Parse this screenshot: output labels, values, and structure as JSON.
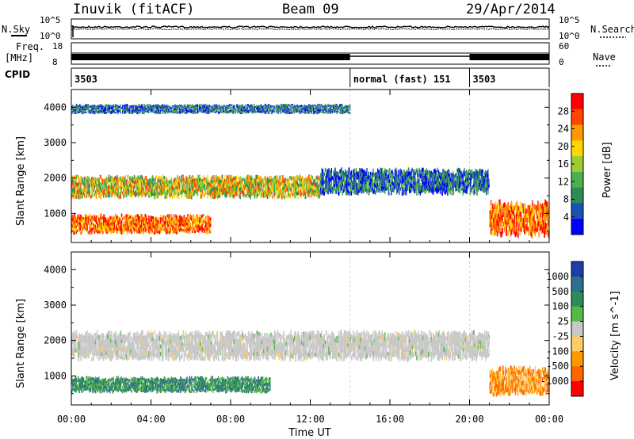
{
  "header": {
    "station": "Inuvik (fitACF)",
    "beam": "Beam 09",
    "date": "29/Apr/2014"
  },
  "top_panels": {
    "nsky_label": "N.Sky",
    "nsearch_label": "N.Search",
    "noise_ticks": [
      "10^5",
      "10^0"
    ],
    "freq_label": "Freq.",
    "freq_unit": "[MHz]",
    "freq_ticks": [
      "18",
      "8"
    ],
    "nave_label": "Nave",
    "nave_ticks": [
      "60",
      "0"
    ],
    "cpid_label": "CPID",
    "cpid_segments": [
      {
        "label": "3503",
        "start_h": 0,
        "end_h": 14.0
      },
      {
        "label": "normal (fast) 151",
        "start_h": 14.0,
        "end_h": 20.0
      },
      {
        "label": "3503",
        "start_h": 20.0,
        "end_h": 24
      }
    ]
  },
  "chart_data": [
    {
      "type": "heatmap",
      "quantity": "Power",
      "ylabel": "Slant Range [km]",
      "xlabel": "",
      "xlim": [
        0,
        24
      ],
      "ylim": [
        180,
        4500
      ],
      "yticks": [
        "1000",
        "2000",
        "3000",
        "4000"
      ],
      "colorbar": {
        "label": "Power [dB]",
        "ticks": [
          "4",
          "8",
          "12",
          "16",
          "20",
          "24",
          "28"
        ],
        "colors": [
          "#0000ff",
          "#1e50b4",
          "#2e8b57",
          "#4caf50",
          "#9acd32",
          "#ffd700",
          "#ff9900",
          "#ff4500",
          "#ff0000"
        ]
      },
      "bands": [
        {
          "from_h": 0.0,
          "to_h": 7.0,
          "range_from": 400,
          "range_to": 1000,
          "level": "high"
        },
        {
          "from_h": 0.0,
          "to_h": 12.5,
          "range_from": 1400,
          "range_to": 2100,
          "level": "medium"
        },
        {
          "from_h": 12.5,
          "to_h": 21.0,
          "range_from": 1500,
          "range_to": 2300,
          "level": "low"
        },
        {
          "from_h": 21.0,
          "to_h": 24.0,
          "range_from": 300,
          "range_to": 1400,
          "level": "high"
        },
        {
          "from_h": 0.0,
          "to_h": 14.0,
          "range_from": 3800,
          "range_to": 4100,
          "level": "low"
        }
      ]
    },
    {
      "type": "heatmap",
      "quantity": "Velocity",
      "ylabel": "Slant Range [km]",
      "xlabel": "Time UT",
      "xlim": [
        0,
        24
      ],
      "ylim": [
        180,
        4500
      ],
      "xticks": [
        "00:00",
        "04:00",
        "08:00",
        "12:00",
        "16:00",
        "20:00",
        "00:00"
      ],
      "yticks": [
        "1000",
        "2000",
        "3000",
        "4000"
      ],
      "colorbar": {
        "label": "Velocity [m s^-1]",
        "ticks": [
          "1000",
          "500",
          "100",
          "25",
          "-25",
          "-100",
          "-500",
          "-1000"
        ],
        "colors": [
          "#1e3caa",
          "#2e6e8e",
          "#2e8b57",
          "#55b848",
          "#c8c8c8",
          "#ffcc66",
          "#ff9900",
          "#ff6600",
          "#ff0000"
        ]
      },
      "bands": [
        {
          "from_h": 0.0,
          "to_h": 10.0,
          "range_from": 500,
          "range_to": 1000,
          "level": "positive"
        },
        {
          "from_h": 0.0,
          "to_h": 21.0,
          "range_from": 1400,
          "range_to": 2300,
          "level": "near-zero"
        },
        {
          "from_h": 21.0,
          "to_h": 24.0,
          "range_from": 400,
          "range_to": 1300,
          "level": "negative"
        }
      ]
    }
  ]
}
